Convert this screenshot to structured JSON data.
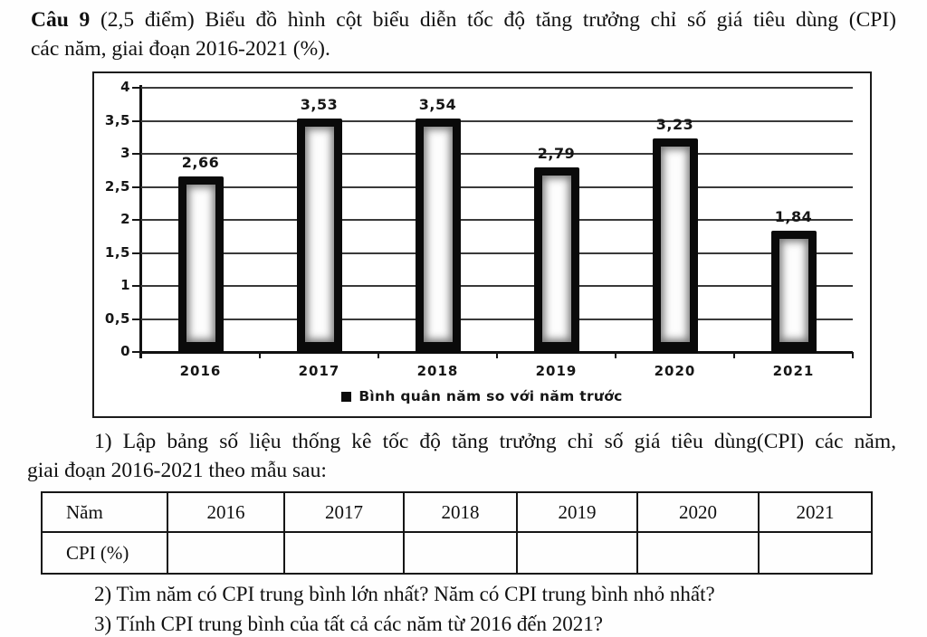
{
  "document": {
    "heading": {
      "label": "Câu 9",
      "line1_rest": " (2,5 điểm) Biểu đồ hình cột biểu diễn tốc độ tăng trưởng chỉ số giá tiêu dùng (CPI)",
      "line2": "các năm, giai đoạn 2016-2021 (%)."
    },
    "task1": {
      "line1": "1) Lập bảng số liệu thống kê tốc độ tăng trưởng chỉ số giá tiêu dùng(CPI) các năm,",
      "line2": "giai đoạn 2016-2021 theo mẫu sau:"
    },
    "question2": "2) Tìm năm có CPI trung bình lớn nhất? Năm có CPI trung bình nhỏ nhất?",
    "question3": "3) Tính CPI trung bình của tất cả các năm từ 2016 đến 2021?"
  },
  "chart_data": {
    "type": "bar",
    "categories": [
      "2016",
      "2017",
      "2018",
      "2019",
      "2020",
      "2021"
    ],
    "values": [
      2.66,
      3.53,
      3.54,
      2.79,
      3.23,
      1.84
    ],
    "value_labels": [
      "2,66",
      "3,53",
      "3,54",
      "2,79",
      "3,23",
      "1,84"
    ],
    "y_ticks": [
      "4",
      "3,5",
      "3",
      "2,5",
      "2",
      "1,5",
      "1",
      "0,5",
      "0"
    ],
    "ylim": [
      0,
      4
    ],
    "grid": true,
    "legend": "Bình quân năm so với năm trước",
    "legend_position": "bottom",
    "bar_border_color": "#0a0a0a",
    "bar_fill_color": "#fdfdfd",
    "title": "",
    "xlabel": "",
    "ylabel": ""
  },
  "table": {
    "header_row": [
      "Năm",
      "2016",
      "2017",
      "2018",
      "2019",
      "2020",
      "2021"
    ],
    "data_row": [
      "CPI (%)",
      "",
      "",
      "",
      "",
      "",
      ""
    ]
  }
}
